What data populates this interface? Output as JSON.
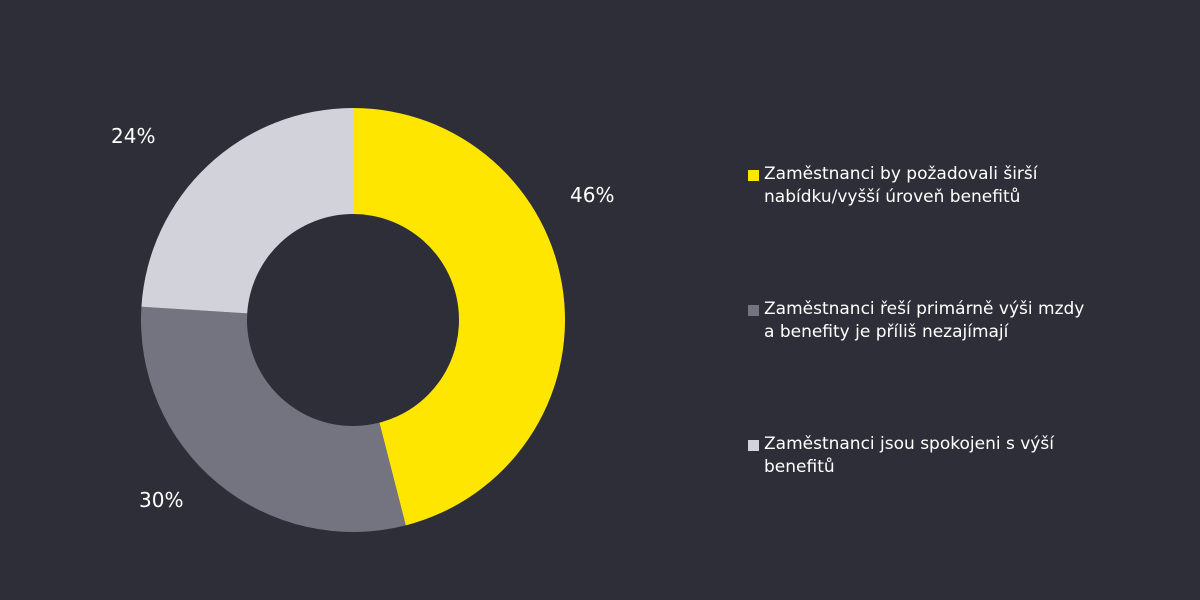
{
  "chart_data": {
    "type": "pie",
    "donut": true,
    "start": "top, clockwise",
    "legend_position": "right",
    "slices": [
      {
        "name": "Zaměstnanci by požadovali širší nabídku/vyšší úroveň benefitů",
        "value": 46,
        "label": "46%",
        "color": "#ffe600"
      },
      {
        "name": "Zaměstnanci řeší primárně výši mzdy a benefity je příliš nezajímají",
        "value": 30,
        "label": "30%",
        "color": "#747480"
      },
      {
        "name": "Zaměstnanci jsou spokojeni s výší benefitů",
        "value": 24,
        "label": "24%",
        "color": "#d2d2da"
      }
    ]
  },
  "colors": {
    "background": "#2e2e38"
  }
}
